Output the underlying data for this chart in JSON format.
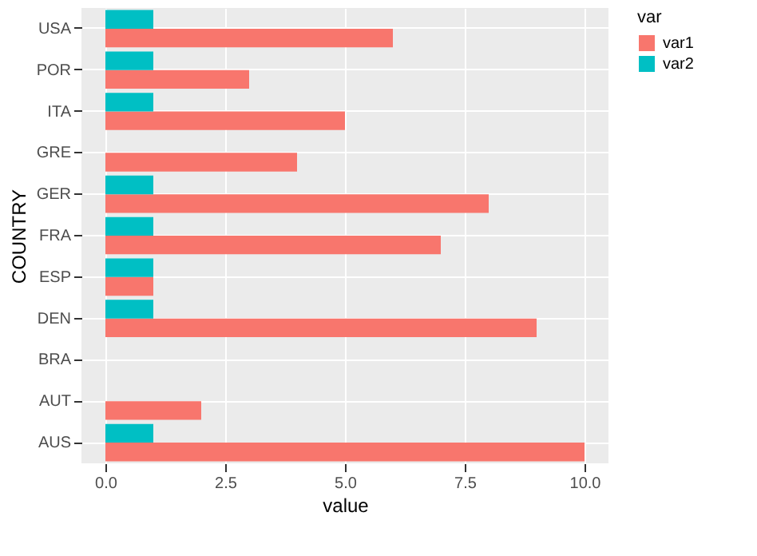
{
  "chart_data": {
    "type": "bar",
    "orientation": "horizontal",
    "xlabel": "value",
    "ylabel": "COUNTRY",
    "legend_title": "var",
    "legend": "right",
    "grid": true,
    "categories": [
      "USA",
      "POR",
      "ITA",
      "GRE",
      "GER",
      "FRA",
      "ESP",
      "DEN",
      "BRA",
      "AUT",
      "AUS"
    ],
    "series": [
      {
        "name": "var1",
        "color": "#f8766d",
        "values": [
          6,
          3,
          5,
          4,
          8,
          7,
          1,
          9,
          null,
          2,
          10
        ]
      },
      {
        "name": "var2",
        "color": "#00bfc4",
        "values": [
          1,
          1,
          1,
          null,
          1,
          1,
          1,
          1,
          null,
          null,
          1
        ]
      }
    ],
    "xlim": [
      -0.5,
      10.5
    ],
    "xticks": [
      {
        "value": 0,
        "label": "0.0"
      },
      {
        "value": 2.5,
        "label": "2.5"
      },
      {
        "value": 5,
        "label": "5.0"
      },
      {
        "value": 7.5,
        "label": "7.5"
      },
      {
        "value": 10,
        "label": "10.0"
      }
    ]
  }
}
